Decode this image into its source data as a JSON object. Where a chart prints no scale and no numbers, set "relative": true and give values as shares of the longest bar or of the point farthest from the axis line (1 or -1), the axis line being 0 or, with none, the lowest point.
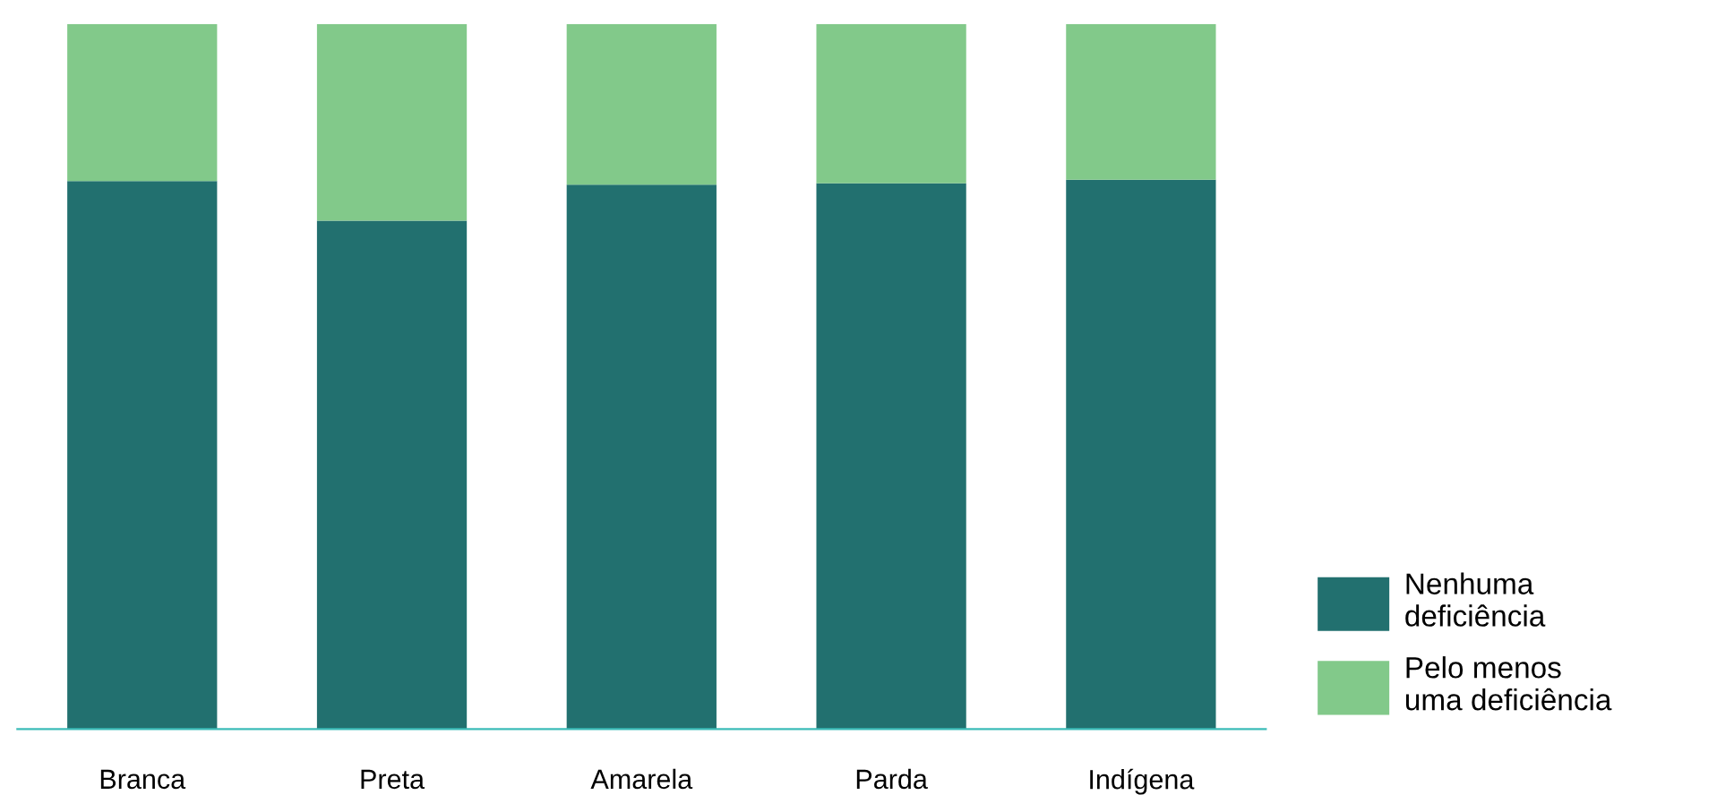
{
  "chart_data": {
    "type": "bar",
    "stacked": true,
    "relative": true,
    "legend": "right",
    "grid": false,
    "categories": [
      "Branca",
      "Preta",
      "Amarela",
      "Parda",
      "Indígena"
    ],
    "series": [
      {
        "name": "Nenhuma\ndeficiência",
        "color": "#22706f",
        "values": [
          0.777,
          0.721,
          0.772,
          0.774,
          0.779
        ]
      },
      {
        "name": "Pelo menos\numa deficiência",
        "color": "#82c98a",
        "values": [
          0.223,
          0.279,
          0.228,
          0.226,
          0.221
        ]
      }
    ]
  }
}
